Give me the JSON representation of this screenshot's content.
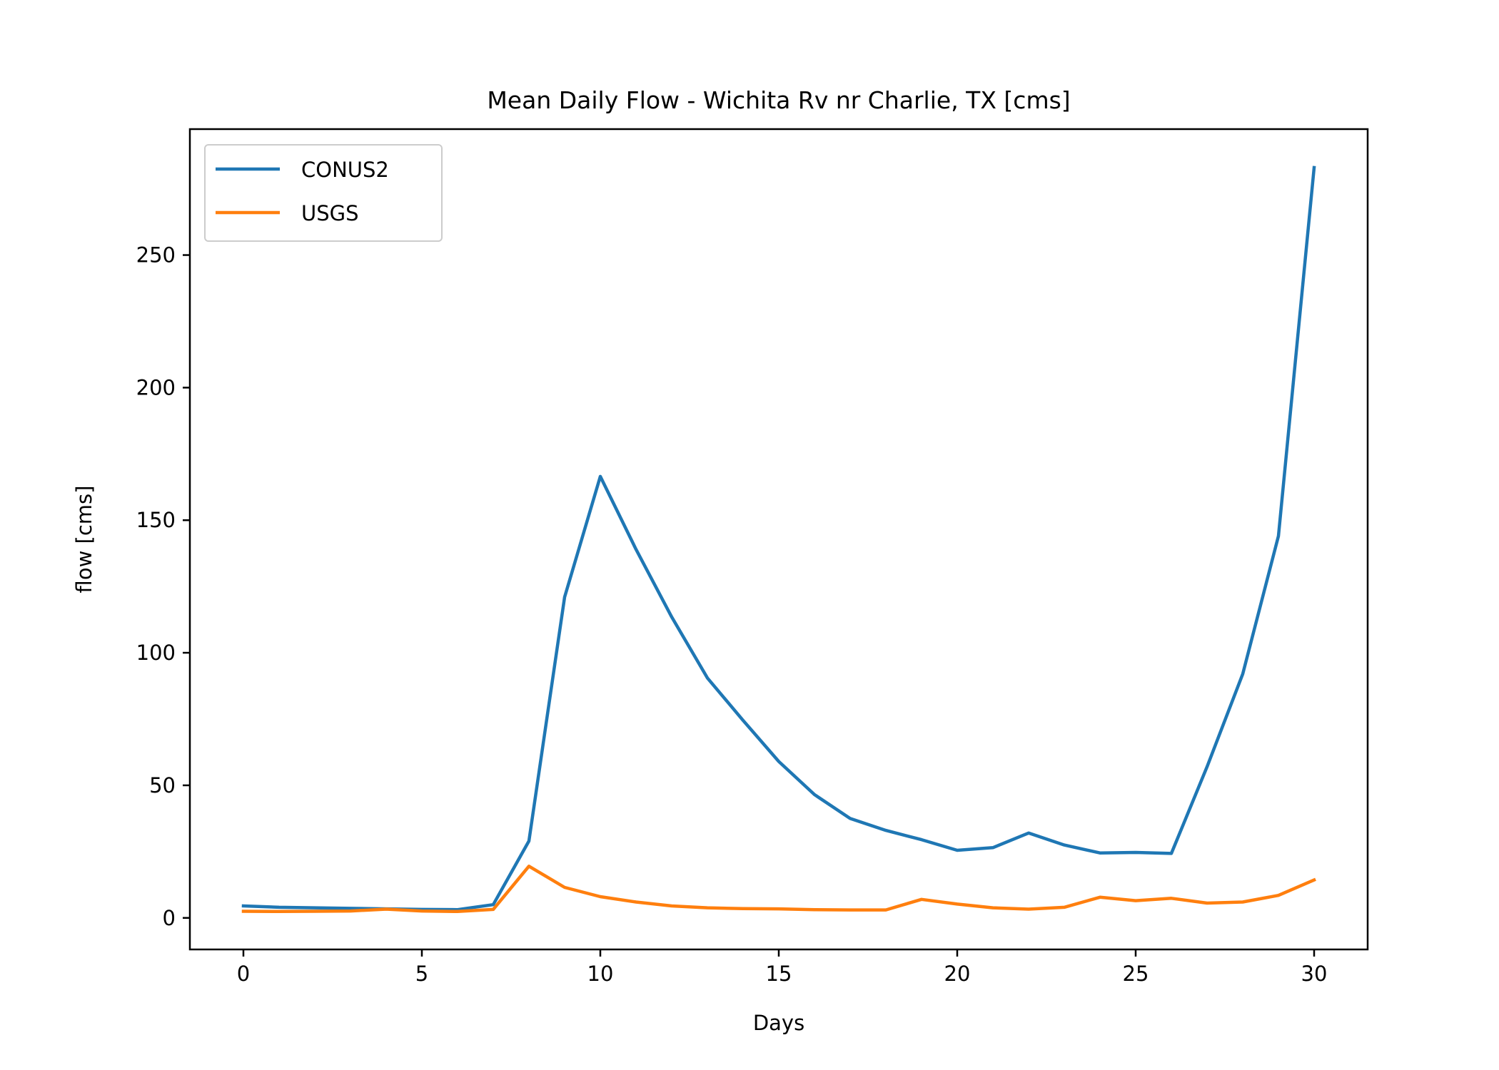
{
  "chart_data": {
    "type": "line",
    "title": "Mean Daily Flow - Wichita Rv nr Charlie, TX [cms]",
    "xlabel": "Days",
    "ylabel": "flow [cms]",
    "xlim": [
      -1.5,
      31.5
    ],
    "ylim": [
      -11.9,
      297.5
    ],
    "xticks": [
      0,
      5,
      10,
      15,
      20,
      25,
      30
    ],
    "yticks": [
      0,
      50,
      100,
      150,
      200,
      250
    ],
    "grid": false,
    "legend_position": "upper left",
    "x": [
      0,
      1,
      2,
      3,
      4,
      5,
      6,
      7,
      8,
      9,
      10,
      11,
      12,
      13,
      14,
      15,
      16,
      17,
      18,
      19,
      20,
      21,
      22,
      23,
      24,
      25,
      26,
      27,
      28,
      29,
      30
    ],
    "series": [
      {
        "name": "CONUS2",
        "color": "#1f77b4",
        "values": [
          4.5,
          4.0,
          3.8,
          3.6,
          3.4,
          3.2,
          3.1,
          5.0,
          29.0,
          121.0,
          166.5,
          139.0,
          113.5,
          90.5,
          74.5,
          59.0,
          46.5,
          37.5,
          33.0,
          29.5,
          25.5,
          26.5,
          32.0,
          27.5,
          24.5,
          24.7,
          24.3,
          57.0,
          92.0,
          144.0,
          283.0
        ]
      },
      {
        "name": "USGS",
        "color": "#ff7f0e",
        "values": [
          2.5,
          2.4,
          2.5,
          2.6,
          3.3,
          2.6,
          2.4,
          3.2,
          19.5,
          11.5,
          8.0,
          6.0,
          4.5,
          3.8,
          3.5,
          3.4,
          3.1,
          3.0,
          3.0,
          7.0,
          5.2,
          3.8,
          3.3,
          4.0,
          7.8,
          6.5,
          7.4,
          5.6,
          6.0,
          8.5,
          14.3
        ]
      }
    ]
  }
}
